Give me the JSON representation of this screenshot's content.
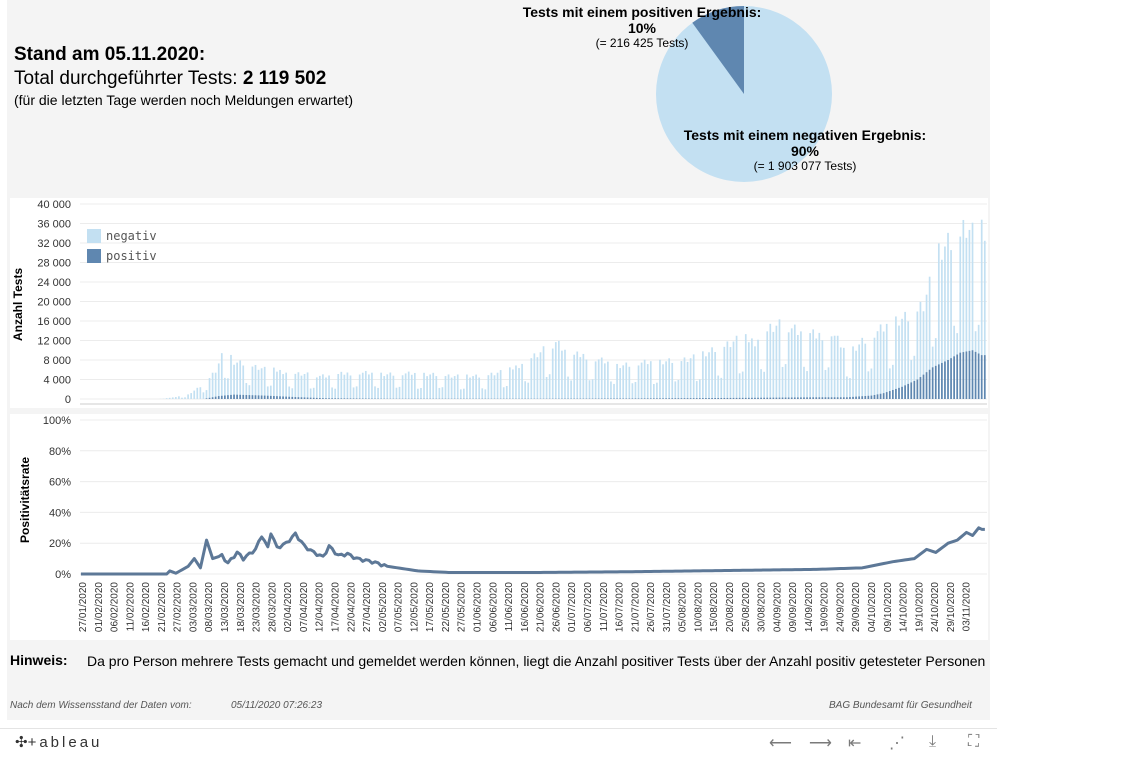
{
  "header": {
    "stand": "Stand am 05.11.2020:",
    "total_label": "Total durchgeführter Tests: ",
    "total_value": "2 119 502",
    "note": "(für die letzten Tage werden noch Meldungen erwartet)"
  },
  "pie": {
    "positive": {
      "title": "Tests mit einem positiven Ergebnis:",
      "pct": "10%",
      "count": "(= 216 425 Tests)",
      "share": 0.1,
      "color": "#5f87b0"
    },
    "negative": {
      "title": "Tests mit einem negativen Ergebnis:",
      "pct": "90%",
      "count": "(= 1 903 077 Tests)",
      "share": 0.9,
      "color": "#c3e0f2"
    }
  },
  "chart_data": [
    {
      "type": "bar",
      "ylabel": "Anzahl Tests",
      "ylim": [
        0,
        40000
      ],
      "yticks": [
        "0",
        "4 000",
        "8 000",
        "12 000",
        "16 000",
        "20 000",
        "24 000",
        "28 000",
        "32 000",
        "36 000",
        "40 000"
      ],
      "legend": [
        {
          "name": "negativ",
          "color": "#c3e0f2"
        },
        {
          "name": "positiv",
          "color": "#5f87b0"
        }
      ],
      "legend_position": "top-left",
      "x_start": "27/01/2020",
      "x_end": "04/11/2020",
      "xtick_labels": [
        "27/01/2020",
        "01/02/2020",
        "06/02/2020",
        "11/02/2020",
        "16/02/2020",
        "21/02/2020",
        "27/02/2020",
        "03/03/2020",
        "08/03/2020",
        "13/03/2020",
        "18/03/2020",
        "23/03/2020",
        "28/03/2020",
        "02/04/2020",
        "07/04/2020",
        "12/04/2020",
        "17/04/2020",
        "22/04/2020",
        "27/04/2020",
        "02/05/2020",
        "07/05/2020",
        "12/05/2020",
        "17/05/2020",
        "22/05/2020",
        "27/05/2020",
        "01/06/2020",
        "06/06/2020",
        "11/06/2020",
        "16/06/2020",
        "21/06/2020",
        "26/06/2020",
        "01/07/2020",
        "06/07/2020",
        "11/07/2020",
        "16/07/2020",
        "21/07/2020",
        "26/07/2020",
        "31/07/2020",
        "05/08/2020",
        "10/08/2020",
        "15/08/2020",
        "20/08/2020",
        "25/08/2020",
        "30/08/2020",
        "04/09/2020",
        "09/09/2020",
        "14/09/2020",
        "19/09/2020",
        "24/09/2020",
        "29/09/2020",
        "04/10/2020",
        "09/10/2020",
        "14/10/2020",
        "19/10/2020",
        "24/10/2020",
        "29/10/2020",
        "03/11/2020"
      ],
      "series": [
        {
          "name": "negativ",
          "keypoints": [
            [
              0,
              0
            ],
            [
              25,
              0
            ],
            [
              30,
              300
            ],
            [
              35,
              900
            ],
            [
              40,
              3000
            ],
            [
              44,
              6000
            ],
            [
              47,
              10500
            ],
            [
              50,
              7500
            ],
            [
              55,
              7000
            ],
            [
              60,
              6200
            ],
            [
              65,
              5800
            ],
            [
              70,
              5200
            ],
            [
              75,
              5000
            ],
            [
              80,
              4800
            ],
            [
              90,
              5500
            ],
            [
              100,
              5200
            ],
            [
              110,
              5200
            ],
            [
              120,
              4900
            ],
            [
              130,
              4600
            ],
            [
              140,
              6000
            ],
            [
              150,
              9500
            ],
            [
              155,
              12000
            ],
            [
              160,
              9000
            ],
            [
              165,
              9000
            ],
            [
              175,
              7000
            ],
            [
              185,
              7500
            ],
            [
              195,
              8000
            ],
            [
              205,
              9500
            ],
            [
              215,
              12500
            ],
            [
              220,
              12000
            ],
            [
              225,
              14500
            ],
            [
              230,
              15500
            ],
            [
              235,
              14000
            ],
            [
              240,
              13000
            ],
            [
              245,
              14000
            ],
            [
              250,
              9500
            ],
            [
              255,
              12000
            ],
            [
              262,
              14500
            ],
            [
              265,
              16000
            ],
            [
              270,
              17000
            ],
            [
              275,
              20000
            ],
            [
              280,
              30000
            ],
            [
              285,
              32500
            ],
            [
              289,
              36000
            ],
            [
              292,
              33000
            ],
            [
              294,
              34000
            ]
          ],
          "weekend_factor": 0.45
        },
        {
          "name": "positiv",
          "keypoints": [
            [
              0,
              0
            ],
            [
              40,
              0
            ],
            [
              45,
              600
            ],
            [
              50,
              900
            ],
            [
              60,
              700
            ],
            [
              70,
              400
            ],
            [
              80,
              150
            ],
            [
              100,
              50
            ],
            [
              150,
              50
            ],
            [
              180,
              100
            ],
            [
              220,
              250
            ],
            [
              240,
              350
            ],
            [
              250,
              350
            ],
            [
              258,
              700
            ],
            [
              262,
              1200
            ],
            [
              268,
              2500
            ],
            [
              273,
              4000
            ],
            [
              278,
              6500
            ],
            [
              283,
              8000
            ],
            [
              287,
              9500
            ],
            [
              291,
              10000
            ],
            [
              294,
              9000
            ]
          ]
        }
      ]
    },
    {
      "type": "line",
      "ylabel": "Positivitätsrate",
      "ylim": [
        0,
        1.0
      ],
      "yticks": [
        "0%",
        "20%",
        "40%",
        "60%",
        "80%",
        "100%"
      ],
      "series": [
        {
          "name": "Positivitätsrate",
          "keypoints": [
            [
              0,
              0
            ],
            [
              28,
              0
            ],
            [
              29,
              0.02
            ],
            [
              31,
              0.005
            ],
            [
              35,
              0.05
            ],
            [
              37,
              0.1
            ],
            [
              39,
              0.04
            ],
            [
              41,
              0.22
            ],
            [
              43,
              0.1
            ],
            [
              46,
              0.12
            ],
            [
              48,
              0.07
            ],
            [
              51,
              0.14
            ],
            [
              53,
              0.1
            ],
            [
              57,
              0.16
            ],
            [
              59,
              0.25
            ],
            [
              61,
              0.17
            ],
            [
              62,
              0.27
            ],
            [
              64,
              0.17
            ],
            [
              67,
              0.2
            ],
            [
              70,
              0.26
            ],
            [
              73,
              0.18
            ],
            [
              76,
              0.14
            ],
            [
              79,
              0.11
            ],
            [
              81,
              0.18
            ],
            [
              84,
              0.12
            ],
            [
              87,
              0.13
            ],
            [
              90,
              0.1
            ],
            [
              95,
              0.08
            ],
            [
              100,
              0.05
            ],
            [
              110,
              0.02
            ],
            [
              120,
              0.01
            ],
            [
              150,
              0.01
            ],
            [
              180,
              0.015
            ],
            [
              200,
              0.02
            ],
            [
              220,
              0.025
            ],
            [
              240,
              0.03
            ],
            [
              255,
              0.04
            ],
            [
              265,
              0.08
            ],
            [
              272,
              0.1
            ],
            [
              276,
              0.16
            ],
            [
              279,
              0.14
            ],
            [
              283,
              0.2
            ],
            [
              286,
              0.22
            ],
            [
              289,
              0.27
            ],
            [
              291,
              0.25
            ],
            [
              293,
              0.3
            ],
            [
              294,
              0.29
            ]
          ]
        }
      ]
    }
  ],
  "hinweis": {
    "title": "Hinweis:",
    "text": "Da pro Person mehrere Tests gemacht und gemeldet werden können, liegt die Anzahl positiver Tests über der Anzahl positiv getesteter Personen"
  },
  "footer": {
    "source_label": "Nach dem Wissensstand der Daten vom:",
    "timestamp": "05/11/2020 07:26:23",
    "credit": "BAG Bundesamt für Gesundheit"
  },
  "toolbar": {
    "brand": "+ableau",
    "icons": [
      "undo-icon",
      "redo-icon",
      "revert-icon",
      "share-icon",
      "download-icon",
      "fullscreen-icon"
    ]
  }
}
